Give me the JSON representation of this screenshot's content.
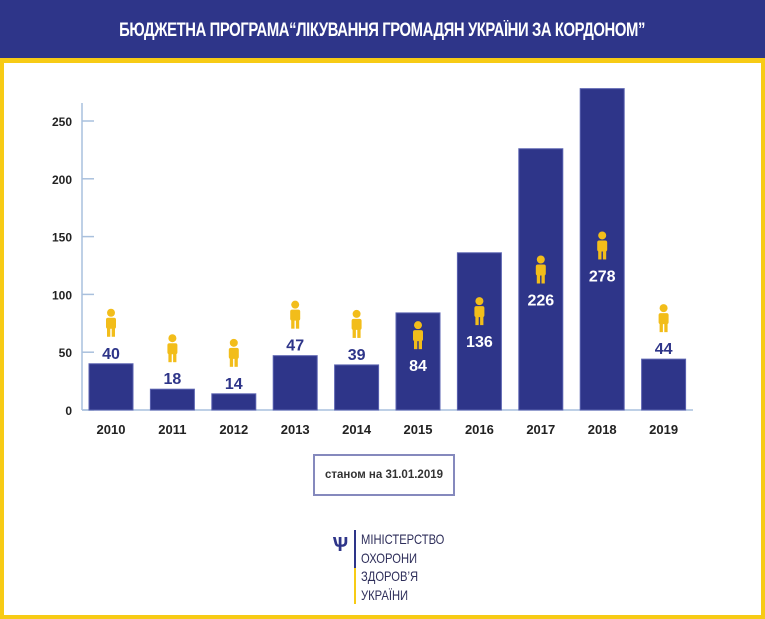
{
  "header": {
    "title": "БЮДЖЕТНА ПРОГРАМА“ЛІКУВАННЯ ГРОМАДЯН УКРАЇНИ  ЗА КОРДОНОМ”"
  },
  "chart_data": {
    "type": "bar",
    "title": "БЮДЖЕТНА ПРОГРАМА“ЛІКУВАННЯ ГРОМАДЯН УКРАЇНИ  ЗА КОРДОНОМ”",
    "categories": [
      "2010",
      "2011",
      "2012",
      "2013",
      "2014",
      "2015",
      "2016",
      "2017",
      "2018",
      "2019"
    ],
    "values": [
      40,
      18,
      14,
      47,
      39,
      84,
      136,
      226,
      278,
      44
    ],
    "yticks": [
      0,
      50,
      100,
      150,
      200,
      250
    ],
    "ylim": [
      0,
      280
    ],
    "xlabel": "",
    "ylabel": "",
    "bar_color": "#2e3589",
    "icon_color": "#f2bd1a",
    "label_color": "#2e3589"
  },
  "note": "станом на 31.01.2019",
  "logo": {
    "lines": [
      "МІНІСТЕРСТВО",
      "ОХОРОНИ",
      "ЗДОРОВ’Я",
      "УКРАЇНИ"
    ]
  }
}
